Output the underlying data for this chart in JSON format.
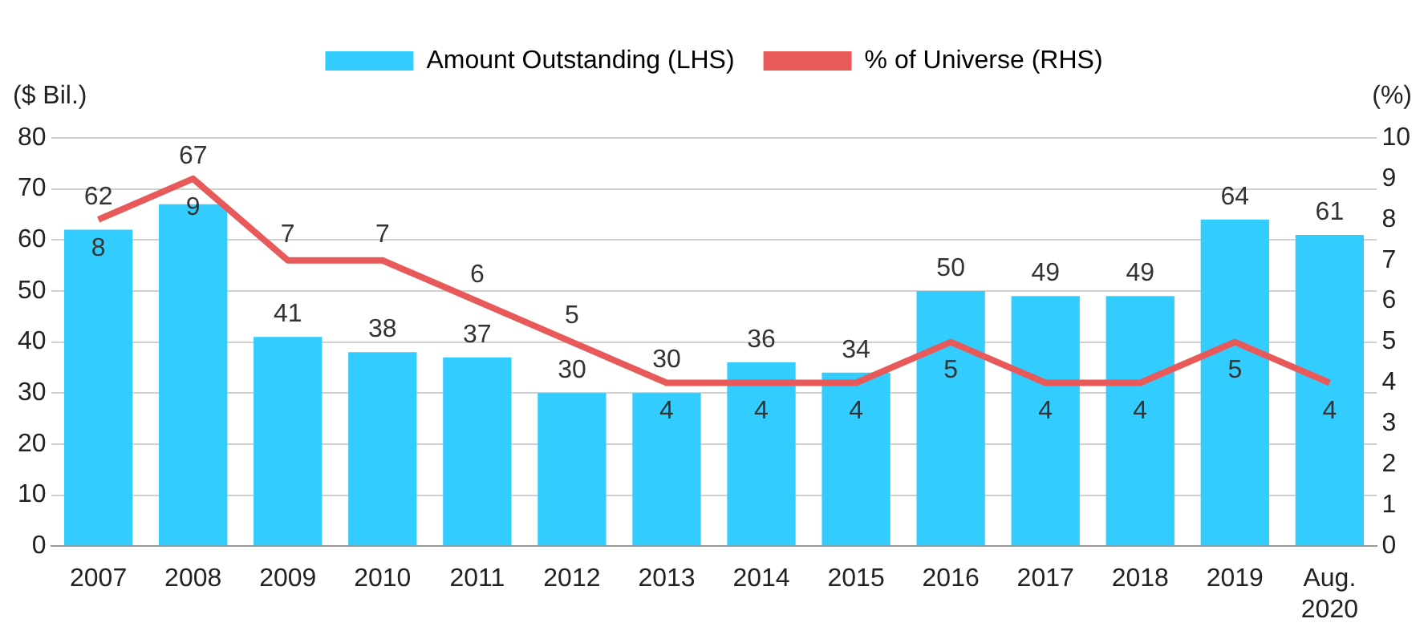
{
  "chart_data": {
    "type": "bar",
    "ylabel": "($ Bil.)",
    "y2label": "(%)",
    "categories": [
      "2007",
      "2008",
      "2009",
      "2010",
      "2011",
      "2012",
      "2013",
      "2014",
      "2015",
      "2016",
      "2017",
      "2018",
      "2019",
      "Aug.\n2020"
    ],
    "series": [
      {
        "name": "Amount Outstanding (LHS)",
        "color": "#33ccff",
        "values": [
          62,
          67,
          41,
          38,
          37,
          30,
          30,
          36,
          34,
          50,
          49,
          49,
          64,
          61
        ]
      },
      {
        "name": "% of Universe (RHS)",
        "type": "line",
        "axis": "y2",
        "color": "#e85a5a",
        "values": [
          8,
          9,
          7,
          7,
          6,
          5,
          4,
          4,
          4,
          5,
          4,
          4,
          5,
          4
        ]
      }
    ],
    "ylim": [
      0,
      80
    ],
    "yticks": [
      0,
      10,
      20,
      30,
      40,
      50,
      60,
      70,
      80
    ],
    "y2lim": [
      0,
      10
    ],
    "y2ticks": [
      0,
      1,
      2,
      3,
      4,
      5,
      6,
      7,
      8,
      9,
      10
    ],
    "grid": "y",
    "legend": "top",
    "marker": "none",
    "line_style": "solid",
    "data_labels": true
  }
}
